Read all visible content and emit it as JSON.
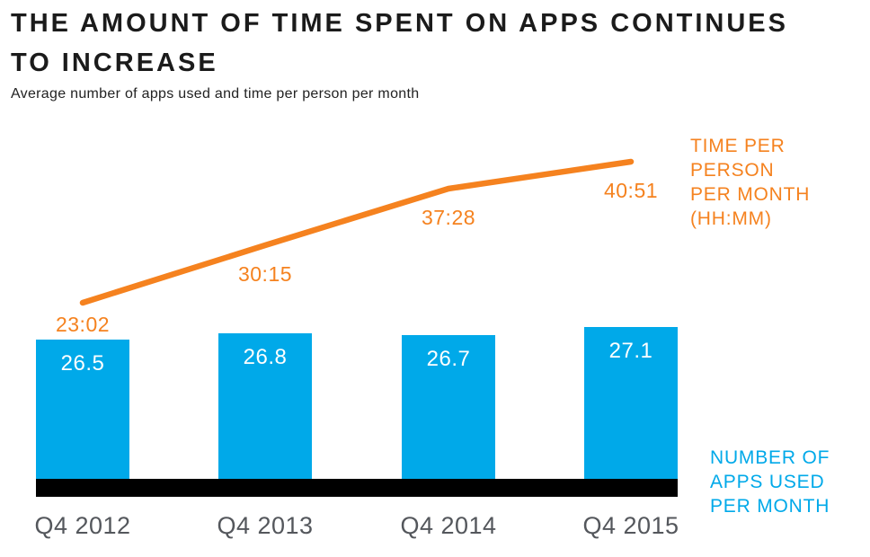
{
  "header": {
    "title_lines": [
      "THE AMOUNT OF TIME SPENT ON APPS CONTINUES",
      "TO INCREASE"
    ],
    "subtitle": "Average number of apps used and time per person per month"
  },
  "colors": {
    "bar_blue": "#00a9e9",
    "line_orange": "#f5821f",
    "baseline_black": "#000000",
    "axis_label_gray": "#54575c",
    "title_black": "#1b1b1b"
  },
  "legends": {
    "time": {
      "lines": [
        "TIME PER PERSON",
        "PER MONTH",
        "(HH:MM)"
      ]
    },
    "apps": {
      "lines": [
        "NUMBER OF",
        "APPS USED",
        "PER MONTH"
      ]
    }
  },
  "chart_data": {
    "type": "bar",
    "subtype": "bar+line combo",
    "title": "THE AMOUNT OF TIME SPENT ON APPS CONTINUES TO INCREASE",
    "subtitle": "Average number of apps used and time per person per month",
    "categories": [
      "Q4 2012",
      "Q4 2013",
      "Q4 2014",
      "Q4 2015"
    ],
    "series": [
      {
        "name": "NUMBER OF APPS USED PER MONTH",
        "type": "bar",
        "values": [
          26.5,
          26.8,
          26.7,
          27.1
        ],
        "labels": [
          "26.5",
          "26.8",
          "26.7",
          "27.1"
        ],
        "color": "#00a9e9",
        "label_position": "inside-top"
      },
      {
        "name": "TIME PER PERSON PER MONTH (HH:MM)",
        "type": "line",
        "values_hhmm": [
          "23:02",
          "30:15",
          "37:28",
          "40:51"
        ],
        "labels": [
          "23:02",
          "30:15",
          "37:28",
          "40:51"
        ],
        "color": "#f5821f",
        "label_position": "below-point"
      }
    ],
    "layout_hints": {
      "grid": false,
      "y_axis_shown": false,
      "baseline": "thick black bar",
      "legend_time_position": "right of line end",
      "legend_apps_position": "right of bars, bottom"
    }
  }
}
